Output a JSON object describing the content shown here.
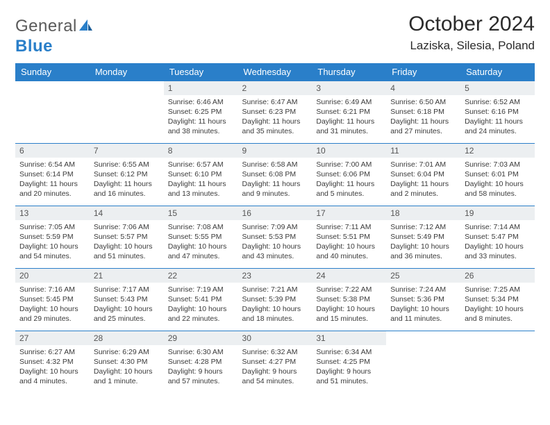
{
  "logo": {
    "word1": "General",
    "word2": "Blue"
  },
  "title": "October 2024",
  "location": "Laziska, Silesia, Poland",
  "colors": {
    "header_bg": "#2a7fc9",
    "header_text": "#ffffff",
    "daynum_bg": "#eceff1",
    "rule": "#2a7fc9",
    "text": "#3a3a3a",
    "page_bg": "#ffffff"
  },
  "dayNames": [
    "Sunday",
    "Monday",
    "Tuesday",
    "Wednesday",
    "Thursday",
    "Friday",
    "Saturday"
  ],
  "weeks": [
    [
      null,
      null,
      {
        "n": "1",
        "sr": "Sunrise: 6:46 AM",
        "ss": "Sunset: 6:25 PM",
        "d1": "Daylight: 11 hours",
        "d2": "and 38 minutes."
      },
      {
        "n": "2",
        "sr": "Sunrise: 6:47 AM",
        "ss": "Sunset: 6:23 PM",
        "d1": "Daylight: 11 hours",
        "d2": "and 35 minutes."
      },
      {
        "n": "3",
        "sr": "Sunrise: 6:49 AM",
        "ss": "Sunset: 6:21 PM",
        "d1": "Daylight: 11 hours",
        "d2": "and 31 minutes."
      },
      {
        "n": "4",
        "sr": "Sunrise: 6:50 AM",
        "ss": "Sunset: 6:18 PM",
        "d1": "Daylight: 11 hours",
        "d2": "and 27 minutes."
      },
      {
        "n": "5",
        "sr": "Sunrise: 6:52 AM",
        "ss": "Sunset: 6:16 PM",
        "d1": "Daylight: 11 hours",
        "d2": "and 24 minutes."
      }
    ],
    [
      {
        "n": "6",
        "sr": "Sunrise: 6:54 AM",
        "ss": "Sunset: 6:14 PM",
        "d1": "Daylight: 11 hours",
        "d2": "and 20 minutes."
      },
      {
        "n": "7",
        "sr": "Sunrise: 6:55 AM",
        "ss": "Sunset: 6:12 PM",
        "d1": "Daylight: 11 hours",
        "d2": "and 16 minutes."
      },
      {
        "n": "8",
        "sr": "Sunrise: 6:57 AM",
        "ss": "Sunset: 6:10 PM",
        "d1": "Daylight: 11 hours",
        "d2": "and 13 minutes."
      },
      {
        "n": "9",
        "sr": "Sunrise: 6:58 AM",
        "ss": "Sunset: 6:08 PM",
        "d1": "Daylight: 11 hours",
        "d2": "and 9 minutes."
      },
      {
        "n": "10",
        "sr": "Sunrise: 7:00 AM",
        "ss": "Sunset: 6:06 PM",
        "d1": "Daylight: 11 hours",
        "d2": "and 5 minutes."
      },
      {
        "n": "11",
        "sr": "Sunrise: 7:01 AM",
        "ss": "Sunset: 6:04 PM",
        "d1": "Daylight: 11 hours",
        "d2": "and 2 minutes."
      },
      {
        "n": "12",
        "sr": "Sunrise: 7:03 AM",
        "ss": "Sunset: 6:01 PM",
        "d1": "Daylight: 10 hours",
        "d2": "and 58 minutes."
      }
    ],
    [
      {
        "n": "13",
        "sr": "Sunrise: 7:05 AM",
        "ss": "Sunset: 5:59 PM",
        "d1": "Daylight: 10 hours",
        "d2": "and 54 minutes."
      },
      {
        "n": "14",
        "sr": "Sunrise: 7:06 AM",
        "ss": "Sunset: 5:57 PM",
        "d1": "Daylight: 10 hours",
        "d2": "and 51 minutes."
      },
      {
        "n": "15",
        "sr": "Sunrise: 7:08 AM",
        "ss": "Sunset: 5:55 PM",
        "d1": "Daylight: 10 hours",
        "d2": "and 47 minutes."
      },
      {
        "n": "16",
        "sr": "Sunrise: 7:09 AM",
        "ss": "Sunset: 5:53 PM",
        "d1": "Daylight: 10 hours",
        "d2": "and 43 minutes."
      },
      {
        "n": "17",
        "sr": "Sunrise: 7:11 AM",
        "ss": "Sunset: 5:51 PM",
        "d1": "Daylight: 10 hours",
        "d2": "and 40 minutes."
      },
      {
        "n": "18",
        "sr": "Sunrise: 7:12 AM",
        "ss": "Sunset: 5:49 PM",
        "d1": "Daylight: 10 hours",
        "d2": "and 36 minutes."
      },
      {
        "n": "19",
        "sr": "Sunrise: 7:14 AM",
        "ss": "Sunset: 5:47 PM",
        "d1": "Daylight: 10 hours",
        "d2": "and 33 minutes."
      }
    ],
    [
      {
        "n": "20",
        "sr": "Sunrise: 7:16 AM",
        "ss": "Sunset: 5:45 PM",
        "d1": "Daylight: 10 hours",
        "d2": "and 29 minutes."
      },
      {
        "n": "21",
        "sr": "Sunrise: 7:17 AM",
        "ss": "Sunset: 5:43 PM",
        "d1": "Daylight: 10 hours",
        "d2": "and 25 minutes."
      },
      {
        "n": "22",
        "sr": "Sunrise: 7:19 AM",
        "ss": "Sunset: 5:41 PM",
        "d1": "Daylight: 10 hours",
        "d2": "and 22 minutes."
      },
      {
        "n": "23",
        "sr": "Sunrise: 7:21 AM",
        "ss": "Sunset: 5:39 PM",
        "d1": "Daylight: 10 hours",
        "d2": "and 18 minutes."
      },
      {
        "n": "24",
        "sr": "Sunrise: 7:22 AM",
        "ss": "Sunset: 5:38 PM",
        "d1": "Daylight: 10 hours",
        "d2": "and 15 minutes."
      },
      {
        "n": "25",
        "sr": "Sunrise: 7:24 AM",
        "ss": "Sunset: 5:36 PM",
        "d1": "Daylight: 10 hours",
        "d2": "and 11 minutes."
      },
      {
        "n": "26",
        "sr": "Sunrise: 7:25 AM",
        "ss": "Sunset: 5:34 PM",
        "d1": "Daylight: 10 hours",
        "d2": "and 8 minutes."
      }
    ],
    [
      {
        "n": "27",
        "sr": "Sunrise: 6:27 AM",
        "ss": "Sunset: 4:32 PM",
        "d1": "Daylight: 10 hours",
        "d2": "and 4 minutes."
      },
      {
        "n": "28",
        "sr": "Sunrise: 6:29 AM",
        "ss": "Sunset: 4:30 PM",
        "d1": "Daylight: 10 hours",
        "d2": "and 1 minute."
      },
      {
        "n": "29",
        "sr": "Sunrise: 6:30 AM",
        "ss": "Sunset: 4:28 PM",
        "d1": "Daylight: 9 hours",
        "d2": "and 57 minutes."
      },
      {
        "n": "30",
        "sr": "Sunrise: 6:32 AM",
        "ss": "Sunset: 4:27 PM",
        "d1": "Daylight: 9 hours",
        "d2": "and 54 minutes."
      },
      {
        "n": "31",
        "sr": "Sunrise: 6:34 AM",
        "ss": "Sunset: 4:25 PM",
        "d1": "Daylight: 9 hours",
        "d2": "and 51 minutes."
      },
      null,
      null
    ]
  ]
}
